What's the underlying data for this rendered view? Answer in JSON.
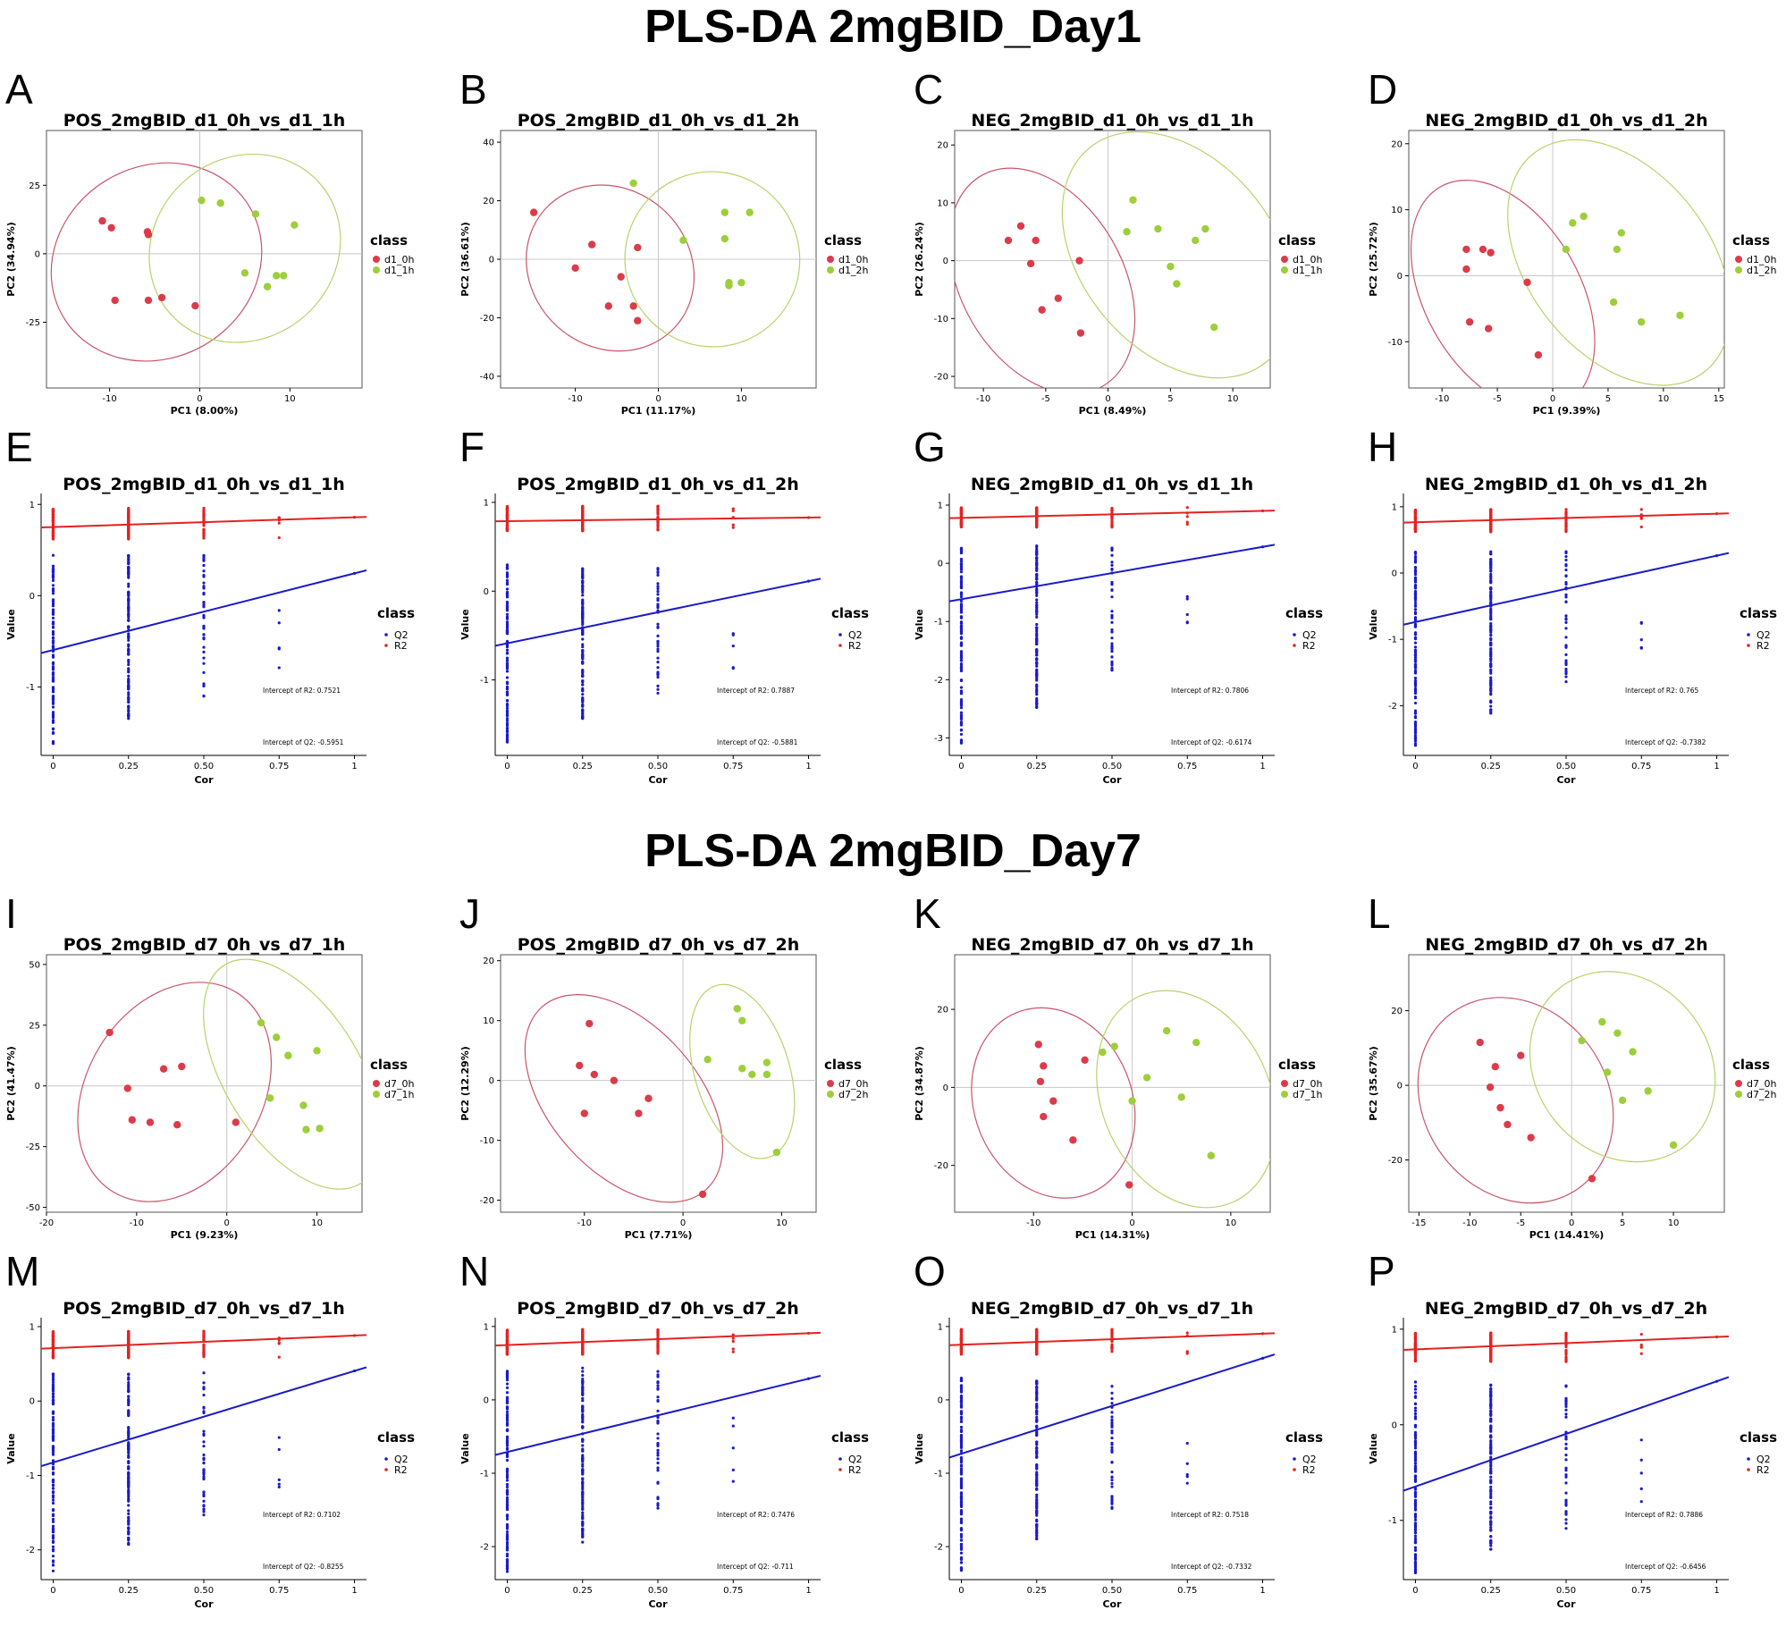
{
  "section_titles": [
    "PLS-DA 2mgBID_Day1",
    "PLS-DA 2mgBID_Day7"
  ],
  "colors": {
    "class0": "#dc3b4a",
    "class1": "#9ccf3a",
    "ellipse0": "#c9556a",
    "ellipse1": "#b7d36a",
    "R2": "#e32222",
    "Q2": "#1a1ac8",
    "guide": "#c8c8c8"
  },
  "chart_data": [
    {
      "id": "A",
      "type": "scatter",
      "title": "POS_2mgBID_d1_0h_vs_d1_1h",
      "xlabel": "PC1 (8.00%)",
      "ylabel": "PC2 (34.94%)",
      "xlim": [
        -17,
        18
      ],
      "ylim": [
        -49,
        45
      ],
      "xticks": [
        -10,
        0,
        10
      ],
      "yticks": [
        -25,
        0,
        25
      ],
      "legend_title": "class",
      "legend": [
        "d1_0h",
        "d1_1h"
      ],
      "series": [
        {
          "name": "d1_0h",
          "x": [
            -10.8,
            -9.8,
            -9.4,
            -5.8,
            -5.7,
            -5.7,
            -4.2,
            -0.5
          ],
          "y": [
            12,
            9.5,
            -17,
            8,
            7,
            -17,
            -16,
            -19
          ]
        },
        {
          "name": "d1_1h",
          "x": [
            0.2,
            2.3,
            5,
            6.2,
            7.5,
            8.5,
            9.3,
            10.5
          ],
          "y": [
            19.5,
            18.5,
            -7,
            14.5,
            -12,
            -8,
            -8,
            10.5
          ]
        }
      ],
      "ellipses": [
        {
          "cx": -4.8,
          "cy": -3,
          "rx": 12,
          "ry": 35,
          "rot": -30
        },
        {
          "cx": 5,
          "cy": 2,
          "rx": 11,
          "ry": 33,
          "rot": -40
        }
      ]
    },
    {
      "id": "B",
      "type": "scatter",
      "title": "POS_2mgBID_d1_0h_vs_d1_2h",
      "xlabel": "PC1 (11.17%)",
      "ylabel": "PC2 (36.61%)",
      "xlim": [
        -19,
        19
      ],
      "ylim": [
        -44,
        44
      ],
      "xticks": [
        -10,
        0,
        10
      ],
      "yticks": [
        -40,
        -20,
        0,
        20,
        40
      ],
      "legend_title": "class",
      "legend": [
        "d1_0h",
        "d1_2h"
      ],
      "series": [
        {
          "name": "d1_0h",
          "x": [
            -15,
            -10,
            -8,
            -6,
            -4.5,
            -3,
            -2.5,
            -2.5
          ],
          "y": [
            16,
            -3,
            5,
            -16,
            -6,
            -16,
            -21,
            4
          ]
        },
        {
          "name": "d1_2h",
          "x": [
            -3,
            3,
            8,
            8,
            8.5,
            8.5,
            10,
            11
          ],
          "y": [
            26,
            6.5,
            16,
            7,
            -8,
            -9,
            -8,
            16
          ]
        }
      ],
      "ellipses": [
        {
          "cx": -5.8,
          "cy": -3,
          "rx": 9.5,
          "ry": 30,
          "rot": -48
        },
        {
          "cx": 6.5,
          "cy": 0,
          "rx": 10.5,
          "ry": 30,
          "rot": -40
        }
      ]
    },
    {
      "id": "C",
      "type": "scatter",
      "title": "NEG_2mgBID_d1_0h_vs_d1_1h",
      "xlabel": "PC1 (8.49%)",
      "ylabel": "PC2 (26.24%)",
      "xlim": [
        -12.3,
        13
      ],
      "ylim": [
        -22,
        22.5
      ],
      "xticks": [
        -10,
        -5,
        0,
        5,
        10
      ],
      "yticks": [
        -20,
        -10,
        0,
        10,
        20
      ],
      "legend_title": "class",
      "legend": [
        "d1_0h",
        "d1_1h"
      ],
      "series": [
        {
          "name": "d1_0h",
          "x": [
            -8,
            -7,
            -6.2,
            -5.8,
            -5.3,
            -4,
            -2.3,
            -2.2
          ],
          "y": [
            3.5,
            6,
            -0.5,
            3.5,
            -8.5,
            -6.5,
            0,
            -12.5
          ]
        },
        {
          "name": "d1_1h",
          "x": [
            1.5,
            2,
            4,
            5,
            5.5,
            7,
            7.8,
            8.5
          ],
          "y": [
            5,
            10.5,
            5.5,
            -1,
            -4,
            3.5,
            5.5,
            -11.5
          ]
        }
      ],
      "ellipses": [
        {
          "cx": -5.3,
          "cy": -3.5,
          "rx": 6.5,
          "ry": 21,
          "rot": -30
        },
        {
          "cx": 5.6,
          "cy": 1,
          "rx": 7.7,
          "ry": 24,
          "rot": -40
        }
      ]
    },
    {
      "id": "D",
      "type": "scatter",
      "title": "NEG_2mgBID_d1_0h_vs_d1_2h",
      "xlabel": "PC1 (9.39%)",
      "ylabel": "PC2 (25.72%)",
      "xlim": [
        -13,
        15.5
      ],
      "ylim": [
        -17,
        22
      ],
      "xticks": [
        -10,
        -5,
        0,
        5,
        10,
        15
      ],
      "yticks": [
        -10,
        0,
        10,
        20
      ],
      "legend_title": "class",
      "legend": [
        "d1_0h",
        "d1_2h"
      ],
      "series": [
        {
          "name": "d1_0h",
          "x": [
            -7.8,
            -7.8,
            -7.5,
            -6.3,
            -5.8,
            -5.6,
            -2.3,
            -1.3
          ],
          "y": [
            4,
            1,
            -7,
            4,
            -8,
            3.5,
            -1,
            -12
          ]
        },
        {
          "name": "d1_2h",
          "x": [
            1.2,
            1.8,
            2.8,
            5.5,
            5.8,
            6.2,
            8,
            11.5
          ],
          "y": [
            4,
            8,
            9,
            -4,
            4,
            6.5,
            -7,
            -6
          ]
        }
      ],
      "ellipses": [
        {
          "cx": -4.5,
          "cy": -3,
          "rx": 7,
          "ry": 19,
          "rot": -30
        },
        {
          "cx": 6,
          "cy": 2,
          "rx": 8.2,
          "ry": 21,
          "rot": -38
        }
      ]
    },
    {
      "id": "E",
      "type": "scatter",
      "title": "POS_2mgBID_d1_0h_vs_d1_1h",
      "xlabel": "Cor",
      "ylabel": "Value",
      "xlim": [
        -0.04,
        1.04
      ],
      "ylim": [
        -1.75,
        1.12
      ],
      "xticks": [
        0,
        0.25,
        0.5,
        0.75,
        1
      ],
      "yticks": [
        -1,
        0,
        1
      ],
      "legend_title": "class",
      "legend": [
        "Q2",
        "R2"
      ],
      "series": [
        {
          "name": "R2",
          "intercept": 0.7521,
          "slope": 0.107,
          "min": 0.62,
          "max": 0.96
        },
        {
          "name": "Q2",
          "intercept": -0.5951,
          "slope": 0.84,
          "min": -1.62,
          "max": 0.45
        }
      ],
      "annotations": [
        "Intercept of R2: 0.7521",
        "Intercept of Q2: -0.5951"
      ]
    },
    {
      "id": "F",
      "type": "scatter",
      "title": "POS_2mgBID_d1_0h_vs_d1_2h",
      "xlabel": "Cor",
      "ylabel": "Value",
      "xlim": [
        -0.04,
        1.04
      ],
      "ylim": [
        -1.85,
        1.1
      ],
      "xticks": [
        0,
        0.25,
        0.5,
        0.75,
        1
      ],
      "yticks": [
        -1,
        0,
        1
      ],
      "legend_title": "class",
      "legend": [
        "Q2",
        "R2"
      ],
      "series": [
        {
          "name": "R2",
          "intercept": 0.7887,
          "slope": 0.04,
          "min": 0.68,
          "max": 0.96
        },
        {
          "name": "Q2",
          "intercept": -0.5881,
          "slope": 0.7,
          "min": -1.72,
          "max": 0.3
        }
      ],
      "annotations": [
        "Intercept of R2: 0.7887",
        "Intercept of Q2: -0.5881"
      ]
    },
    {
      "id": "G",
      "type": "scatter",
      "title": "NEG_2mgBID_d1_0h_vs_d1_1h",
      "xlabel": "Cor",
      "ylabel": "Value",
      "xlim": [
        -0.04,
        1.04
      ],
      "ylim": [
        -3.3,
        1.2
      ],
      "xticks": [
        0,
        0.25,
        0.5,
        0.75,
        1
      ],
      "yticks": [
        -3,
        -2,
        -1,
        0,
        1
      ],
      "legend_title": "class",
      "legend": [
        "Q2",
        "R2"
      ],
      "series": [
        {
          "name": "R2",
          "intercept": 0.7806,
          "slope": 0.12,
          "min": 0.62,
          "max": 0.96
        },
        {
          "name": "Q2",
          "intercept": -0.6174,
          "slope": 0.9,
          "min": -3.1,
          "max": 0.3
        }
      ],
      "annotations": [
        "Intercept of R2: 0.7806",
        "Intercept of Q2: -0.6174"
      ]
    },
    {
      "id": "H",
      "type": "scatter",
      "title": "NEG_2mgBID_d1_0h_vs_d1_2h",
      "xlabel": "Cor",
      "ylabel": "Value",
      "xlim": [
        -0.04,
        1.04
      ],
      "ylim": [
        -2.75,
        1.2
      ],
      "xticks": [
        0,
        0.25,
        0.5,
        0.75,
        1
      ],
      "yticks": [
        -2,
        -1,
        0,
        1
      ],
      "legend_title": "class",
      "legend": [
        "Q2",
        "R2"
      ],
      "series": [
        {
          "name": "R2",
          "intercept": 0.765,
          "slope": 0.13,
          "min": 0.62,
          "max": 0.96
        },
        {
          "name": "Q2",
          "intercept": -0.7382,
          "slope": 1.0,
          "min": -2.6,
          "max": 0.35
        }
      ],
      "annotations": [
        "Intercept of R2: 0.765",
        "Intercept of Q2: -0.7382"
      ]
    },
    {
      "id": "I",
      "type": "scatter",
      "title": "POS_2mgBID_d7_0h_vs_d7_1h",
      "xlabel": "PC1 (9.23%)",
      "ylabel": "PC2 (41.47%)",
      "xlim": [
        -20,
        15
      ],
      "ylim": [
        -52,
        54
      ],
      "xticks": [
        -20,
        -10,
        0,
        10
      ],
      "yticks": [
        -50,
        -25,
        0,
        25,
        50
      ],
      "legend_title": "class",
      "legend": [
        "d7_0h",
        "d7_1h"
      ],
      "series": [
        {
          "name": "d7_0h",
          "x": [
            -13,
            -11,
            -10.5,
            -8.5,
            -7,
            -5.5,
            -5,
            1
          ],
          "y": [
            22,
            -1,
            -14,
            -15,
            7,
            -16,
            8,
            -15
          ]
        },
        {
          "name": "d7_1h",
          "x": [
            3.8,
            4.8,
            5.5,
            6.8,
            8.5,
            8.8,
            10,
            10.3
          ],
          "y": [
            26,
            -5,
            20,
            12.5,
            -8,
            -18,
            14.5,
            -17.5
          ]
        }
      ],
      "ellipses": [
        {
          "cx": -5.8,
          "cy": -2.5,
          "rx": 13,
          "ry": 36,
          "rot": -58
        },
        {
          "cx": 7.3,
          "cy": 4.8,
          "rx": 7.5,
          "ry": 53,
          "rot": -32
        }
      ]
    },
    {
      "id": "J",
      "type": "scatter",
      "title": "POS_2mgBID_d7_0h_vs_d7_2h",
      "xlabel": "PC1 (7.71%)",
      "ylabel": "PC2 (12.29%)",
      "xlim": [
        -18.5,
        13.5
      ],
      "ylim": [
        -22,
        21
      ],
      "xticks": [
        -10,
        0,
        10
      ],
      "yticks": [
        -20,
        -10,
        0,
        10,
        20
      ],
      "legend_title": "class",
      "legend": [
        "d7_0h",
        "d7_2h"
      ],
      "series": [
        {
          "name": "d7_0h",
          "x": [
            -10.5,
            -10,
            -9.5,
            -9,
            -7,
            -4.5,
            -3.5,
            2
          ],
          "y": [
            2.5,
            -5.5,
            9.5,
            1,
            0,
            -5.5,
            -3,
            -19
          ]
        },
        {
          "name": "d7_2h",
          "x": [
            2.5,
            5.5,
            6,
            6,
            7,
            8.5,
            8.5,
            9.5
          ],
          "y": [
            3.5,
            12,
            2,
            10,
            1,
            3,
            1,
            -12
          ]
        }
      ],
      "ellipses": [
        {
          "cx": -6,
          "cy": -3,
          "rx": 7.5,
          "ry": 20.5,
          "rot": -42
        },
        {
          "cx": 6,
          "cy": 1.5,
          "rx": 4.8,
          "ry": 15,
          "rot": -17
        }
      ]
    },
    {
      "id": "K",
      "type": "scatter",
      "title": "NEG_2mgBID_d7_0h_vs_d7_1h",
      "xlabel": "PC1 (14.31%)",
      "ylabel": "PC2 (34.87%)",
      "xlim": [
        -18,
        14
      ],
      "ylim": [
        -32,
        34
      ],
      "xticks": [
        -10,
        0,
        10
      ],
      "yticks": [
        -20,
        0,
        20
      ],
      "legend_title": "class",
      "legend": [
        "d7_0h",
        "d7_1h"
      ],
      "series": [
        {
          "name": "d7_0h",
          "x": [
            -9.5,
            -9.3,
            -9,
            -9,
            -8,
            -6,
            -4.8,
            -0.3
          ],
          "y": [
            11,
            1.5,
            5.5,
            -7.5,
            -3.5,
            -13.5,
            7,
            -25
          ]
        },
        {
          "name": "d7_1h",
          "x": [
            -3,
            -1.8,
            0,
            1.5,
            3.5,
            5,
            6.5,
            8
          ],
          "y": [
            9,
            10.5,
            -3.5,
            2.5,
            14.5,
            -2.5,
            11.5,
            -17.5
          ]
        }
      ],
      "ellipses": [
        {
          "cx": -8,
          "cy": -4,
          "rx": 8,
          "ry": 25,
          "rot": -22
        },
        {
          "cx": 5.5,
          "cy": -3,
          "rx": 8.5,
          "ry": 29,
          "rot": -25
        }
      ]
    },
    {
      "id": "L",
      "type": "scatter",
      "title": "NEG_2mgBID_d7_0h_vs_d7_2h",
      "xlabel": "PC1 (14.41%)",
      "ylabel": "PC2 (35.67%)",
      "xlim": [
        -16,
        15
      ],
      "ylim": [
        -34,
        35
      ],
      "xticks": [
        -15,
        -10,
        -5,
        0,
        5,
        10
      ],
      "yticks": [
        -20,
        0,
        20
      ],
      "legend_title": "class",
      "legend": [
        "d7_0h",
        "d7_2h"
      ],
      "series": [
        {
          "name": "d7_0h",
          "x": [
            -9,
            -8,
            -7.5,
            -7,
            -6.3,
            -5,
            -4,
            2
          ],
          "y": [
            11.5,
            -0.5,
            5,
            -6,
            -10.5,
            8,
            -14,
            -25
          ]
        },
        {
          "name": "d7_2h",
          "x": [
            1,
            3,
            3.5,
            4.5,
            5,
            6,
            7.5,
            10
          ],
          "y": [
            12,
            17,
            3.5,
            14,
            -4,
            9,
            -1.5,
            -16
          ]
        }
      ],
      "ellipses": [
        {
          "cx": -5.5,
          "cy": -4,
          "rx": 9,
          "ry": 29,
          "rot": -36
        },
        {
          "cx": 5,
          "cy": 5,
          "rx": 8.5,
          "ry": 27,
          "rot": -40
        }
      ]
    },
    {
      "id": "M",
      "type": "scatter",
      "title": "POS_2mgBID_d7_0h_vs_d7_1h",
      "xlabel": "Cor",
      "ylabel": "Value",
      "xlim": [
        -0.04,
        1.04
      ],
      "ylim": [
        -2.4,
        1.12
      ],
      "xticks": [
        0,
        0.25,
        0.5,
        0.75,
        1
      ],
      "yticks": [
        -2,
        -1,
        0,
        1
      ],
      "legend_title": "class",
      "legend": [
        "Q2",
        "R2"
      ],
      "series": [
        {
          "name": "R2",
          "intercept": 0.7102,
          "slope": 0.17,
          "min": 0.58,
          "max": 0.94
        },
        {
          "name": "Q2",
          "intercept": -0.8255,
          "slope": 1.23,
          "min": -2.3,
          "max": 0.38
        }
      ],
      "annotations": [
        "Intercept of R2: 0.7102",
        "Intercept of Q2: -0.8255"
      ]
    },
    {
      "id": "N",
      "type": "scatter",
      "title": "POS_2mgBID_d7_0h_vs_d7_2h",
      "xlabel": "Cor",
      "ylabel": "Value",
      "xlim": [
        -0.04,
        1.04
      ],
      "ylim": [
        -2.45,
        1.12
      ],
      "xticks": [
        0,
        0.25,
        0.5,
        0.75,
        1
      ],
      "yticks": [
        -2,
        -1,
        0,
        1
      ],
      "legend_title": "class",
      "legend": [
        "Q2",
        "R2"
      ],
      "series": [
        {
          "name": "R2",
          "intercept": 0.7476,
          "slope": 0.16,
          "min": 0.62,
          "max": 0.96
        },
        {
          "name": "Q2",
          "intercept": -0.711,
          "slope": 1.0,
          "min": -2.35,
          "max": 0.45
        }
      ],
      "annotations": [
        "Intercept of R2: 0.7476",
        "Intercept of Q2: -0.711"
      ]
    },
    {
      "id": "O",
      "type": "scatter",
      "title": "NEG_2mgBID_d7_0h_vs_d7_1h",
      "xlabel": "Cor",
      "ylabel": "Value",
      "xlim": [
        -0.04,
        1.04
      ],
      "ylim": [
        -2.45,
        1.12
      ],
      "xticks": [
        0,
        0.25,
        0.5,
        0.75,
        1
      ],
      "yticks": [
        -2,
        -1,
        0,
        1
      ],
      "legend_title": "class",
      "legend": [
        "Q2",
        "R2"
      ],
      "series": [
        {
          "name": "R2",
          "intercept": 0.7518,
          "slope": 0.15,
          "min": 0.62,
          "max": 0.96
        },
        {
          "name": "Q2",
          "intercept": -0.7332,
          "slope": 1.3,
          "min": -2.35,
          "max": 0.3
        }
      ],
      "annotations": [
        "Intercept of R2: 0.7518",
        "Intercept of Q2: -0.7332"
      ]
    },
    {
      "id": "P",
      "type": "scatter",
      "title": "NEG_2mgBID_d7_0h_vs_d7_2h",
      "xlabel": "Cor",
      "ylabel": "Value",
      "xlim": [
        -0.04,
        1.04
      ],
      "ylim": [
        -1.62,
        1.12
      ],
      "xticks": [
        0,
        0.25,
        0.5,
        0.75,
        1
      ],
      "yticks": [
        -1,
        0,
        1
      ],
      "legend_title": "class",
      "legend": [
        "Q2",
        "R2"
      ],
      "series": [
        {
          "name": "R2",
          "intercept": 0.7886,
          "slope": 0.13,
          "min": 0.66,
          "max": 0.96
        },
        {
          "name": "Q2",
          "intercept": -0.6456,
          "slope": 1.1,
          "min": -1.55,
          "max": 0.45
        }
      ],
      "annotations": [
        "Intercept of R2: 0.7886",
        "Intercept of Q2: -0.6456"
      ]
    }
  ]
}
